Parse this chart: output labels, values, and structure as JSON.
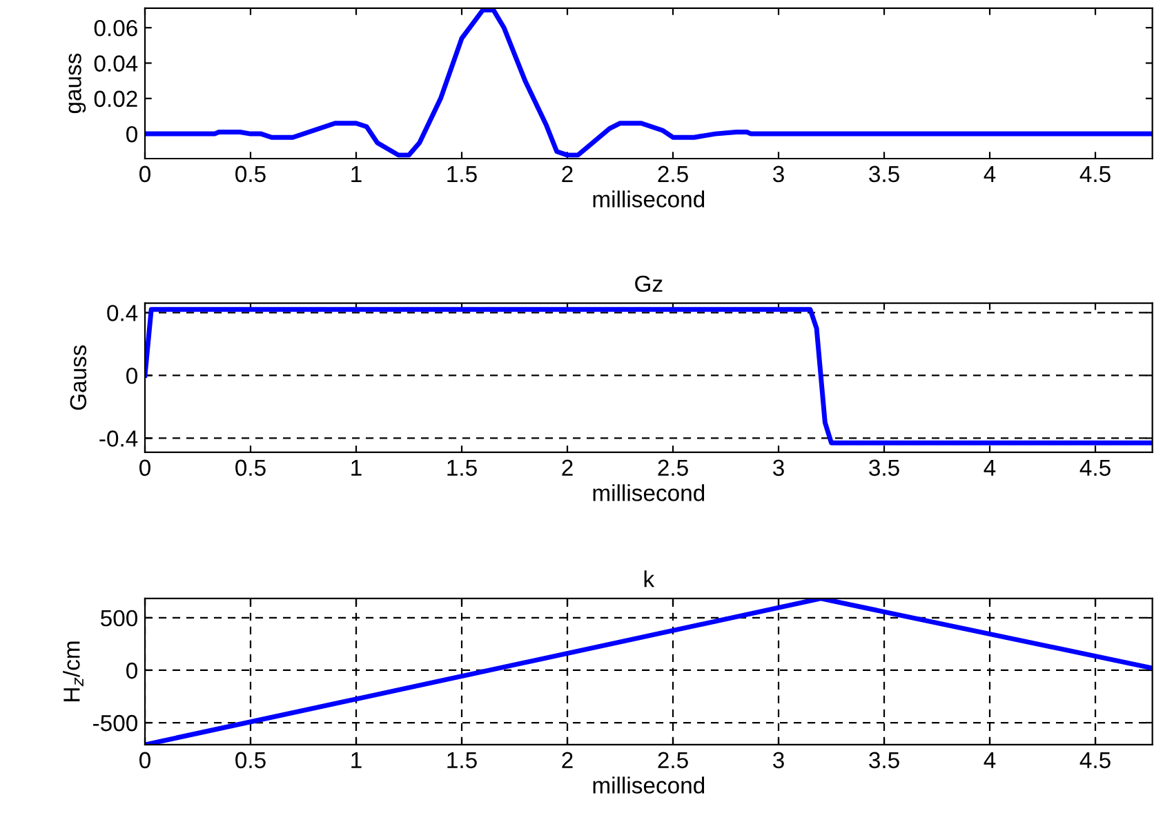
{
  "chart_data": [
    {
      "type": "line",
      "xlabel": "millisecond",
      "ylabel": "gauss",
      "xlim": [
        0,
        4.77
      ],
      "ylim": [
        -0.014,
        0.071
      ],
      "xticks": [
        0,
        0.5,
        1,
        1.5,
        2,
        2.5,
        3,
        3.5,
        4,
        4.5
      ],
      "yticks": [
        0,
        0.02,
        0.04,
        0.06
      ],
      "grid": false,
      "legend": false,
      "series": [
        {
          "color": "#0000ff",
          "x": [
            0,
            0.33,
            0.35,
            0.45,
            0.5,
            0.55,
            0.6,
            0.7,
            0.8,
            0.9,
            1.0,
            1.05,
            1.1,
            1.2,
            1.25,
            1.3,
            1.4,
            1.5,
            1.6,
            1.65,
            1.7,
            1.8,
            1.9,
            1.95,
            2.0,
            2.05,
            2.1,
            2.2,
            2.25,
            2.35,
            2.45,
            2.5,
            2.6,
            2.7,
            2.8,
            2.85,
            2.87,
            4.77
          ],
          "values": [
            0,
            0,
            0.001,
            0.001,
            0,
            0,
            -0.002,
            -0.002,
            0.002,
            0.006,
            0.006,
            0.004,
            -0.005,
            -0.012,
            -0.012,
            -0.005,
            0.02,
            0.054,
            0.07,
            0.07,
            0.06,
            0.03,
            0.005,
            -0.01,
            -0.012,
            -0.012,
            -0.007,
            0.003,
            0.006,
            0.006,
            0.002,
            -0.002,
            -0.002,
            0,
            0.001,
            0.001,
            0,
            0
          ]
        }
      ]
    },
    {
      "type": "line",
      "title": "Gz",
      "xlabel": "millisecond",
      "ylabel": "Gauss",
      "xlim": [
        0,
        4.77
      ],
      "ylim": [
        -0.49,
        0.46
      ],
      "xticks": [
        0,
        0.5,
        1,
        1.5,
        2,
        2.5,
        3,
        3.5,
        4,
        4.5
      ],
      "yticks": [
        {
          "value": -0.4,
          "label": "-0.4"
        },
        0,
        0.4
      ],
      "grid": "y",
      "legend": false,
      "series": [
        {
          "color": "#0000ff",
          "x": [
            0,
            0.03,
            3.15,
            3.18,
            3.22,
            3.25,
            4.77
          ],
          "values": [
            0,
            0.42,
            0.42,
            0.3,
            -0.3,
            -0.43,
            -0.43
          ]
        }
      ]
    },
    {
      "type": "line",
      "title": "k",
      "xlabel": "millisecond",
      "ylabel": "H$_{z}$/cm",
      "xlim": [
        0,
        4.77
      ],
      "ylim": [
        -710,
        684
      ],
      "xticks": [
        0,
        0.5,
        1,
        1.5,
        2,
        2.5,
        3,
        3.5,
        4,
        4.5
      ],
      "yticks": [
        {
          "value": -500,
          "label": "-500"
        },
        0,
        500
      ],
      "grid": true,
      "legend": false,
      "series": [
        {
          "color": "#0000ff",
          "x": [
            0,
            3.2,
            4.77
          ],
          "values": [
            -710,
            684,
            20
          ]
        }
      ]
    }
  ]
}
